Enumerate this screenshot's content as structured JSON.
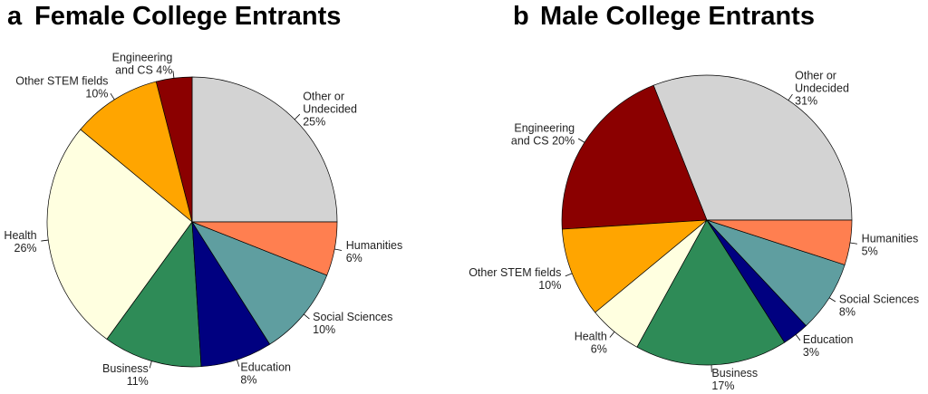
{
  "chart_data": [
    {
      "type": "pie",
      "panel": "a",
      "title": "Female College Entrants",
      "direction": "counterclockwise-from-3-oclock",
      "slices": [
        {
          "name": "Other or Undecided",
          "value": 25,
          "color": "#d3d3d3",
          "label_lines": [
            "Other or",
            "Undecided",
            "25%"
          ]
        },
        {
          "name": "Engineering and CS",
          "value": 4,
          "color": "#8b0000",
          "label_lines": [
            "Engineering",
            "and CS 4%"
          ]
        },
        {
          "name": "Other STEM fields",
          "value": 10,
          "color": "#ffa500",
          "label_lines": [
            "Other STEM fields",
            "10%"
          ]
        },
        {
          "name": "Health",
          "value": 26,
          "color": "#ffffe0",
          "label_lines": [
            "Health",
            "26%"
          ]
        },
        {
          "name": "Business",
          "value": 11,
          "color": "#2e8b57",
          "label_lines": [
            "Business",
            "11%"
          ]
        },
        {
          "name": "Education",
          "value": 8,
          "color": "#000080",
          "label_lines": [
            "Education",
            "8%"
          ]
        },
        {
          "name": "Social Sciences",
          "value": 10,
          "color": "#5f9ea0",
          "label_lines": [
            "Social Sciences",
            "10%"
          ]
        },
        {
          "name": "Humanities",
          "value": 6,
          "color": "#ff7f50",
          "label_lines": [
            "Humanities",
            "6%"
          ]
        }
      ]
    },
    {
      "type": "pie",
      "panel": "b",
      "title": "Male College Entrants",
      "direction": "counterclockwise-from-3-oclock",
      "slices": [
        {
          "name": "Other or Undecided",
          "value": 31,
          "color": "#d3d3d3",
          "label_lines": [
            "Other or",
            "Undecided",
            "31%"
          ]
        },
        {
          "name": "Engineering and CS",
          "value": 20,
          "color": "#8b0000",
          "label_lines": [
            "Engineering",
            "and CS 20%"
          ]
        },
        {
          "name": "Other STEM fields",
          "value": 10,
          "color": "#ffa500",
          "label_lines": [
            "Other STEM fields",
            "10%"
          ]
        },
        {
          "name": "Health",
          "value": 6,
          "color": "#ffffe0",
          "label_lines": [
            "Health",
            "6%"
          ]
        },
        {
          "name": "Business",
          "value": 17,
          "color": "#2e8b57",
          "label_lines": [
            "Business",
            "17%"
          ]
        },
        {
          "name": "Education",
          "value": 3,
          "color": "#000080",
          "label_lines": [
            "Education",
            "3%"
          ]
        },
        {
          "name": "Social Sciences",
          "value": 8,
          "color": "#5f9ea0",
          "label_lines": [
            "Social Sciences",
            "8%"
          ]
        },
        {
          "name": "Humanities",
          "value": 5,
          "color": "#ff7f50",
          "label_lines": [
            "Humanities",
            "5%"
          ]
        }
      ]
    }
  ]
}
